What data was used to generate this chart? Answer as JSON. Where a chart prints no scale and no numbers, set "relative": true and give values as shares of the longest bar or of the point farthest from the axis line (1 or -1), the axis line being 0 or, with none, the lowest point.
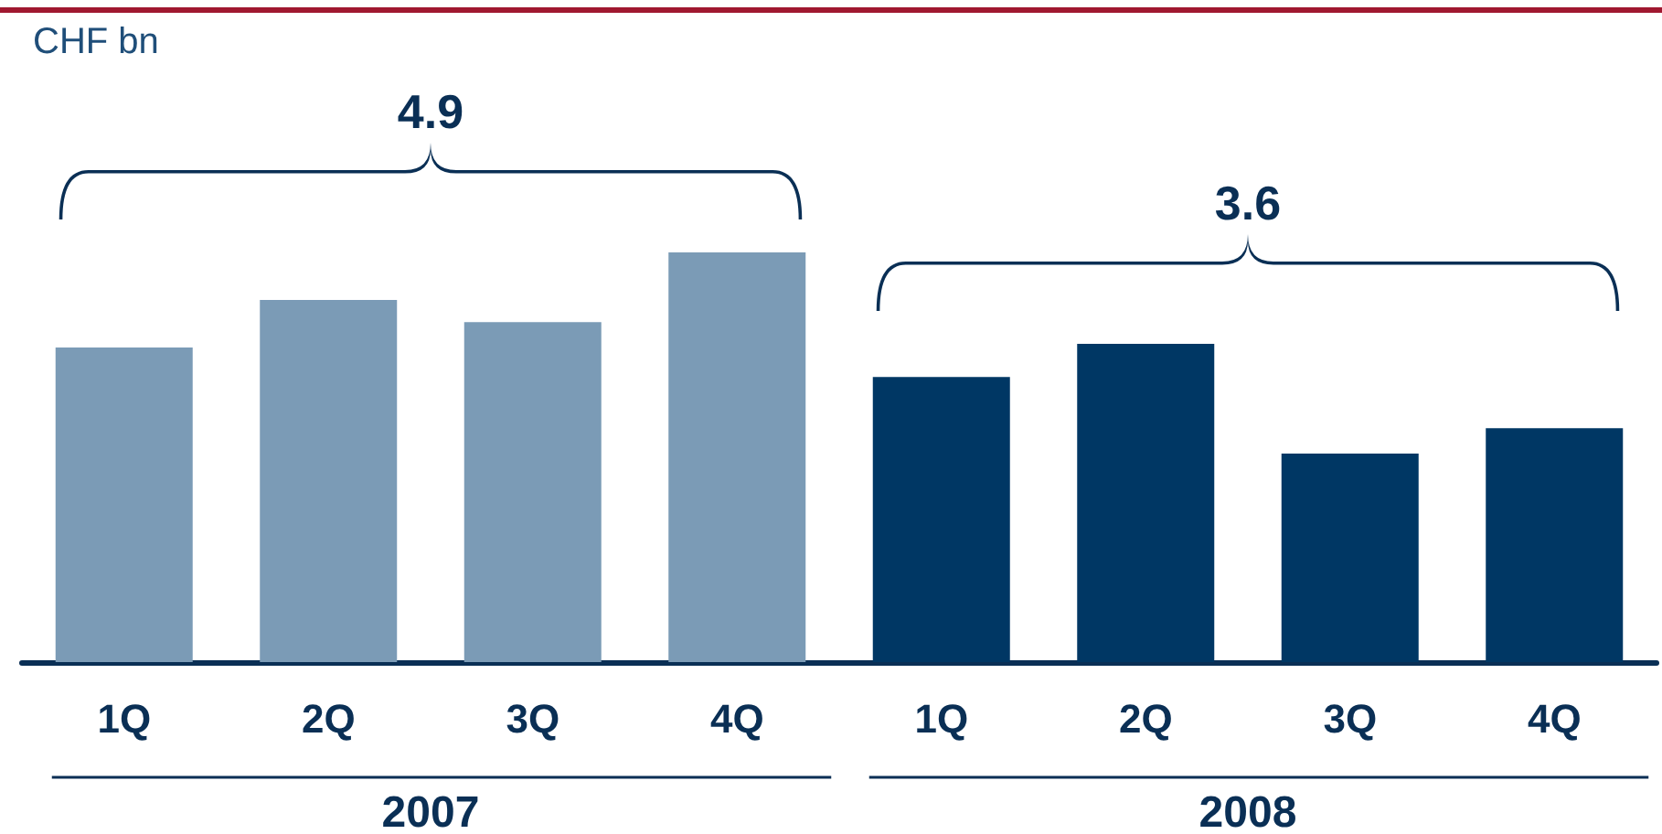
{
  "chart_data": {
    "type": "bar",
    "relative": true,
    "categories": [
      "1Q",
      "2Q",
      "3Q",
      "4Q",
      "1Q",
      "2Q",
      "3Q",
      "4Q"
    ],
    "values": [
      0.768,
      0.884,
      0.83,
      1,
      0.696,
      0.777,
      0.509,
      0.571
    ],
    "colors": [
      "#7b9bb6",
      "#7b9bb6",
      "#7b9bb6",
      "#7b9bb6",
      "#003764",
      "#003764",
      "#003764",
      "#003764"
    ],
    "annotations": [
      "CHF bn",
      "4.9",
      "3.6",
      "2007",
      "2008"
    ]
  }
}
